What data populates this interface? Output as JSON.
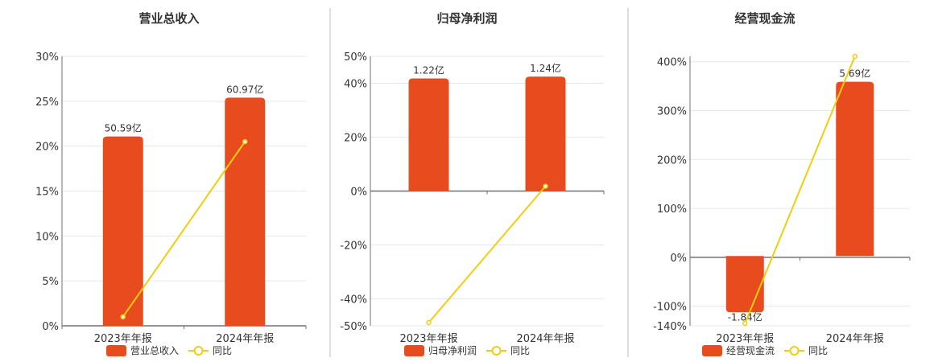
{
  "colors": {
    "bar": "#E84C1E",
    "line": "#F2CD0F",
    "grid": "#E3E7F2",
    "axis": "#6E7079",
    "divider": "#BBBBBB"
  },
  "chart_data": [
    {
      "type": "bar+line",
      "title": "营业总收入",
      "categories": [
        "2023年年报",
        "2024年年报"
      ],
      "bar_series": {
        "name": "营业总收入",
        "values": [
          50.59,
          60.97
        ],
        "labels": [
          "50.59亿",
          "60.97亿"
        ],
        "unit": "亿",
        "axis_hidden": true,
        "ylim": [
          0,
          72
        ]
      },
      "line_series": {
        "name": "同比",
        "values": [
          1.0,
          20.5
        ],
        "unit": "%"
      },
      "y_ticks": [
        0,
        5,
        10,
        15,
        20,
        25,
        30
      ],
      "y_tick_labels": [
        "0%",
        "5%",
        "10%",
        "15%",
        "20%",
        "25%",
        "30%"
      ],
      "ylim": [
        0,
        30
      ],
      "grid": true,
      "legend": "bottom"
    },
    {
      "type": "bar+line",
      "title": "归母净利润",
      "categories": [
        "2023年年报",
        "2024年年报"
      ],
      "bar_series": {
        "name": "归母净利润",
        "values": [
          1.22,
          1.24
        ],
        "labels": [
          "1.22亿",
          "1.24亿"
        ],
        "unit": "亿",
        "axis_hidden": true,
        "ylim": [
          -1.46,
          1.46
        ]
      },
      "line_series": {
        "name": "同比",
        "values": [
          -48.8,
          1.8
        ],
        "unit": "%"
      },
      "y_ticks": [
        -50,
        -40,
        -20,
        0,
        20,
        40,
        50
      ],
      "y_tick_labels": [
        "-50%",
        "-40%",
        "-20%",
        "0%",
        "20%",
        "40%",
        "50%"
      ],
      "ylim": [
        -50,
        50
      ],
      "grid": true,
      "legend": "bottom"
    },
    {
      "type": "bar+line",
      "title": "经营现金流",
      "categories": [
        "2023年年报",
        "2024年年报"
      ],
      "bar_series": {
        "name": "经营现金流",
        "values": [
          -1.84,
          5.69
        ],
        "labels": [
          "-1.84亿",
          "5.69亿"
        ],
        "unit": "亿",
        "axis_hidden": true,
        "ylim": [
          -2.28,
          6.52
        ]
      },
      "line_series": {
        "name": "同比",
        "values": [
          -135,
          411
        ],
        "unit": "%"
      },
      "y_ticks": [
        -140,
        -100,
        0,
        100,
        200,
        300,
        400
      ],
      "y_tick_labels": [
        "-140%",
        "-100%",
        "0%",
        "100%",
        "200%",
        "300%",
        "400%"
      ],
      "ylim": [
        -140,
        411
      ],
      "grid": true,
      "legend": "bottom"
    }
  ]
}
